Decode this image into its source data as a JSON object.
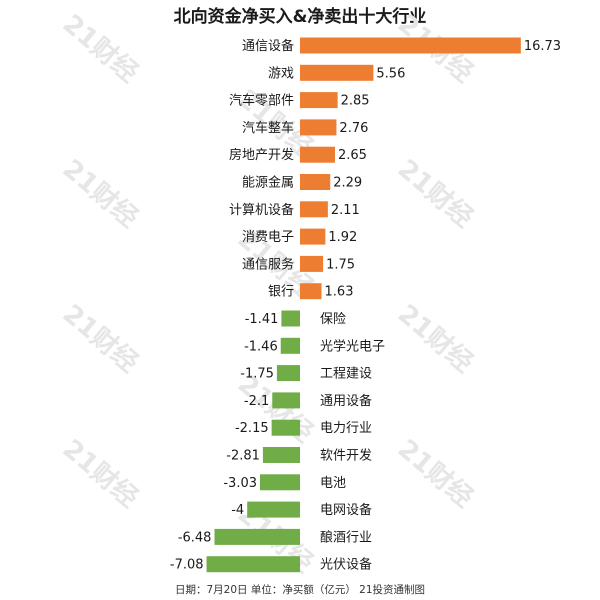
{
  "watermark": "21财经",
  "footer": "日期：7月20日 单位：净买额（亿元） 21投资通制图",
  "colors": {
    "positive": "#ED7D31",
    "negative": "#70AD47",
    "text": "#1a1a1a"
  },
  "chart_data": {
    "type": "bar",
    "orientation": "horizontal",
    "title": "北向资金净买入&净卖出十大行业",
    "categories": [
      "通信设备",
      "游戏",
      "汽车零部件",
      "汽车整车",
      "房地产开发",
      "能源金属",
      "计算机设备",
      "消费电子",
      "通信服务",
      "银行",
      "保险",
      "光学光电子",
      "工程建设",
      "通用设备",
      "电力行业",
      "软件开发",
      "电池",
      "电网设备",
      "酿酒行业",
      "光伏设备"
    ],
    "values": [
      16.73,
      5.56,
      2.85,
      2.76,
      2.65,
      2.29,
      2.11,
      1.92,
      1.75,
      1.63,
      -1.41,
      -1.46,
      -1.75,
      -2.1,
      -2.15,
      -2.81,
      -3.03,
      -4,
      -6.48,
      -7.08
    ],
    "value_labels": [
      "16.73",
      "5.56",
      "2.85",
      "2.76",
      "2.65",
      "2.29",
      "2.11",
      "1.92",
      "1.75",
      "1.63",
      "-1.41",
      "-1.46",
      "-1.75",
      "-2.1",
      "-2.15",
      "-2.81",
      "-3.03",
      "-4",
      "-6.48",
      "-7.08"
    ],
    "xlim": [
      -7.08,
      16.73
    ],
    "grid": false,
    "legend": "none"
  }
}
